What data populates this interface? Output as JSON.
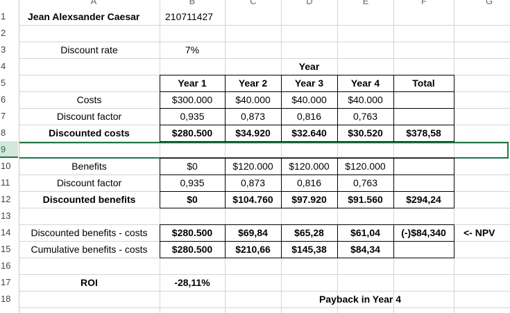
{
  "columns": [
    "A",
    "B",
    "C",
    "D",
    "E",
    "F",
    "G"
  ],
  "rows": [
    "1",
    "2",
    "3",
    "4",
    "5",
    "6",
    "7",
    "8",
    "9",
    "10",
    "11",
    "12",
    "13",
    "14",
    "15",
    "16",
    "17",
    "18"
  ],
  "cells": {
    "name": "Jean Alexsander Caesar",
    "id": "210711427",
    "discount_rate_label": "Discount rate",
    "discount_rate_value": "7%",
    "year_heading": "Year",
    "year_headers": [
      "Year 1",
      "Year 2",
      "Year 3",
      "Year 4",
      "Total"
    ],
    "costs_label": "Costs",
    "costs": [
      "$300.000",
      "$40.000",
      "$40.000",
      "$40.000"
    ],
    "discount_factor_label": "Discount factor",
    "discount_factors": [
      "0,935",
      "0,873",
      "0,816",
      "0,763"
    ],
    "discounted_costs_label": "Discounted costs",
    "discounted_costs": [
      "$280.500",
      "$34.920",
      "$32.640",
      "$30.520",
      "$378,58"
    ],
    "benefits_label": "Benefits",
    "benefits": [
      "$0",
      "$120.000",
      "$120.000",
      "$120.000"
    ],
    "discount_factor2_label": "Discount factor",
    "discount_factors2": [
      "0,935",
      "0,873",
      "0,816",
      "0,763"
    ],
    "discounted_benefits_label": "Discounted benefits",
    "discounted_benefits": [
      "$0",
      "$104.760",
      "$97.920",
      "$91.560",
      "$294,24"
    ],
    "net_label": "Discounted benefits - costs",
    "net": [
      "$280.500",
      "$69,84",
      "$65,28",
      "$61,04",
      "(-)$84,340"
    ],
    "npv_note": "<- NPV",
    "cum_label": "Cumulative benefits - costs",
    "cum": [
      "$280.500",
      "$210,66",
      "$145,38",
      "$84,34"
    ],
    "roi_label": "ROI",
    "roi_value": "-28,11%",
    "payback": "Payback in Year 4"
  }
}
